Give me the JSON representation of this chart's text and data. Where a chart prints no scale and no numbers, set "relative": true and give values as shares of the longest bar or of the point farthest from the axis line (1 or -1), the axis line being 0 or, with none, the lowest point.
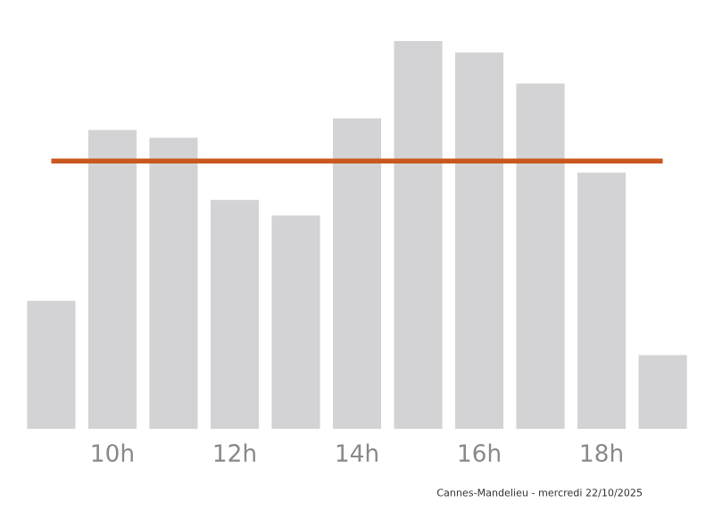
{
  "chart_data": {
    "type": "bar",
    "relative": true,
    "categories": [
      null,
      "10h",
      null,
      "12h",
      null,
      "14h",
      null,
      "16h",
      null,
      "18h",
      null
    ],
    "values": [
      0.33,
      0.77,
      0.75,
      0.59,
      0.55,
      0.8,
      1,
      0.97,
      0.89,
      0.66,
      0.19
    ],
    "color": "#d3d3d5",
    "ref_lines": [
      {
        "axis": "y",
        "value": 0.69,
        "color": "#c8581e"
      }
    ],
    "grid": false,
    "legend": false,
    "annotations": [
      "Cannes-Mandelieu - mercredi 22/10/2025"
    ]
  }
}
